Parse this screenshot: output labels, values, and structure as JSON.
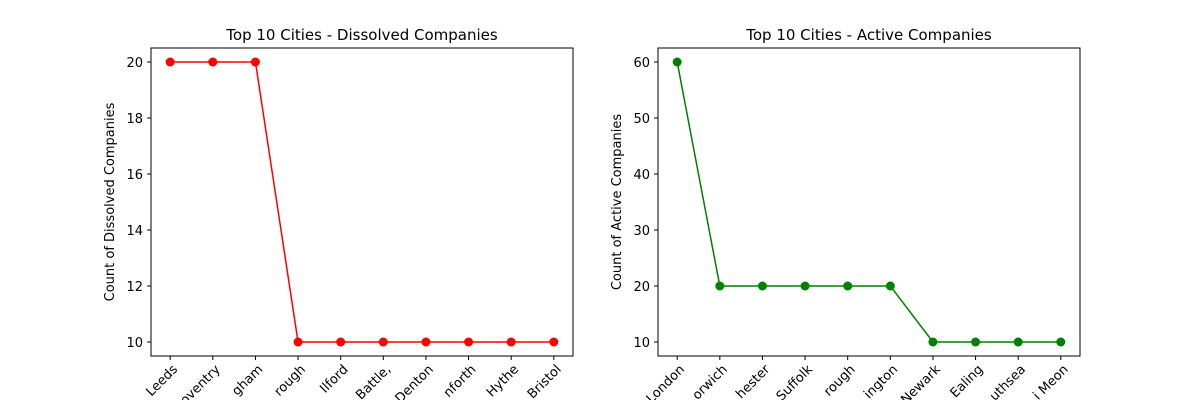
{
  "chart_data": [
    {
      "type": "line",
      "title": "Top 10 Cities - Dissolved Companies",
      "y_label": "Count of Dissolved Companies",
      "categories": [
        "Leeds",
        "oventry",
        "gham",
        "rough",
        "Ilford",
        "Battle,",
        "Denton",
        "nforth",
        "Hythe",
        "Bristol"
      ],
      "values": [
        20,
        20,
        20,
        10,
        10,
        10,
        10,
        10,
        10,
        10
      ],
      "color": "#ff0000",
      "ylim": [
        9.5,
        20.5
      ],
      "yticks": [
        10,
        12,
        14,
        16,
        18,
        20
      ]
    },
    {
      "type": "line",
      "title": "Top 10 Cities - Active Companies",
      "y_label": "Count of Active Companies",
      "categories": [
        "London",
        "orwich",
        "hester",
        "Suffolk",
        "rough",
        "ington",
        "Newark",
        "Ealing",
        "uthsea",
        "i Meon"
      ],
      "values": [
        60,
        20,
        20,
        20,
        20,
        20,
        10,
        10,
        10,
        10
      ],
      "color": "#008000",
      "ylim": [
        7.5,
        62.5
      ],
      "yticks": [
        10,
        20,
        30,
        40,
        50,
        60
      ]
    }
  ]
}
